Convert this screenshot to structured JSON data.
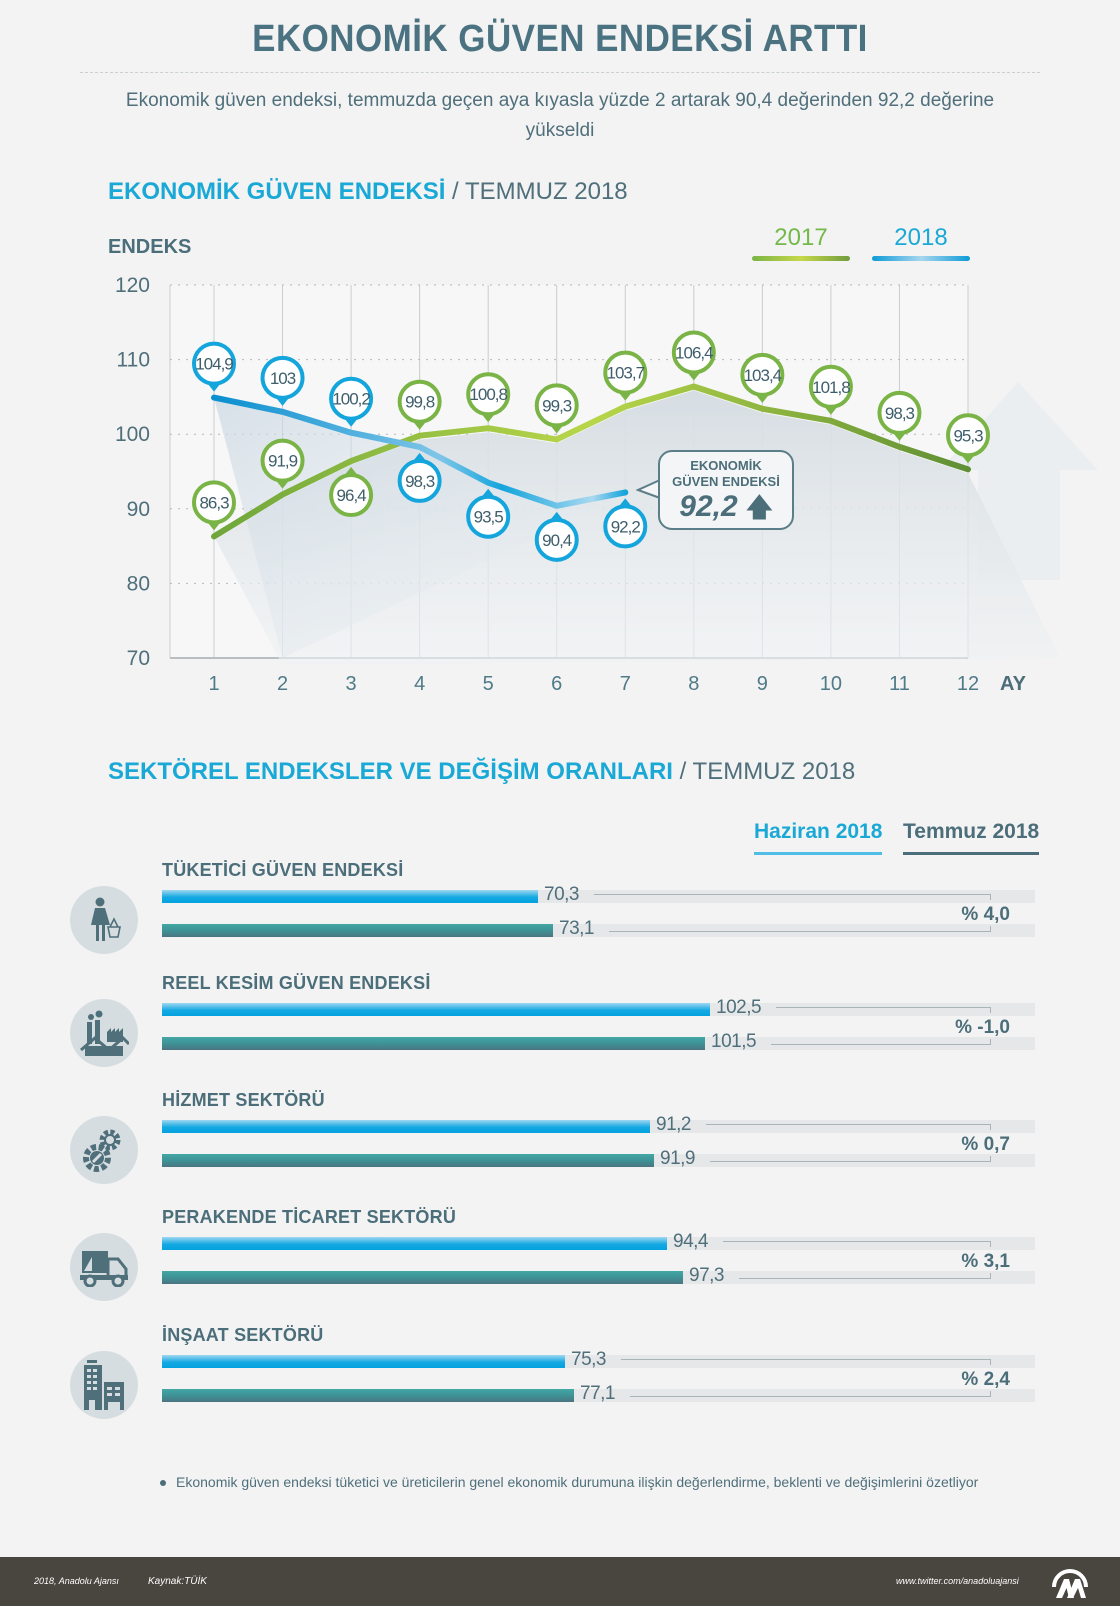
{
  "header": {
    "title": "EKONOMİK GÜVEN ENDEKSİ ARTTI",
    "subtitle": "Ekonomik güven endeksi, temmuzda geçen aya kıyasla yüzde 2 artarak 90,4 değerinden 92,2 değerine yükseldi"
  },
  "section1": {
    "title": "EKONOMİK GÜVEN ENDEKSİ",
    "slash": " / ",
    "subtitle": "TEMMUZ 2018"
  },
  "callout": {
    "line1": "EKONOMİK",
    "line2": "GÜVEN ENDEKSİ",
    "value": "92,2",
    "arrow": "🡅"
  },
  "colors": {
    "green": "#7ab446",
    "blue": "#14a5dc",
    "heading_blue": "#1aa9d6",
    "slate": "#4b6e7a",
    "footer_bg": "#49453f"
  },
  "chart_data": {
    "type": "line",
    "title": "EKONOMİK GÜVEN ENDEKSİ / TEMMUZ 2018",
    "ylabel": "ENDEKS",
    "xlabel": "AY",
    "ylim": [
      70,
      120
    ],
    "yticks": [
      "70",
      "80",
      "90",
      "100",
      "110",
      "120"
    ],
    "x": [
      "1",
      "2",
      "3",
      "4",
      "5",
      "6",
      "7",
      "8",
      "9",
      "10",
      "11",
      "12"
    ],
    "grid": true,
    "legend": "top-right",
    "series": [
      {
        "name": "2017",
        "values": [
          86.3,
          91.9,
          96.4,
          99.8,
          100.8,
          99.3,
          103.7,
          106.4,
          103.4,
          101.8,
          98.3,
          95.3
        ],
        "labels": [
          "86,3",
          "91,9",
          "96,4",
          "99,8",
          "100,8",
          "99,3",
          "103,7",
          "106,4",
          "103,4",
          "101,8",
          "98,3",
          "95,3"
        ]
      },
      {
        "name": "2018",
        "values": [
          104.9,
          103,
          100.2,
          98.3,
          93.5,
          90.4,
          92.2
        ],
        "labels": [
          "104,9",
          "103",
          "100,2",
          "98,3",
          "93,5",
          "90,4",
          "92,2"
        ]
      }
    ]
  },
  "section2": {
    "title": "SEKTÖREL ENDEKSLER VE DEĞİŞİM ORANLARI",
    "slash": " / ",
    "subtitle": "TEMMUZ 2018",
    "legend": {
      "prev": "Haziran 2018",
      "curr": "Temmuz 2018"
    },
    "sectors": [
      {
        "name": "TÜKETİCİ GÜVEN ENDEKSİ",
        "icon": "shopper-icon",
        "prev": 70.3,
        "prev_label": "70,3",
        "curr": 73.1,
        "curr_label": "73,1",
        "change": "% 4,0"
      },
      {
        "name": "REEL KESİM GÜVEN ENDEKSİ",
        "icon": "factory-icon",
        "prev": 102.5,
        "prev_label": "102,5",
        "curr": 101.5,
        "curr_label": "101,5",
        "change": "% -1,0"
      },
      {
        "name": "HİZMET SEKTÖRÜ",
        "icon": "gears-icon",
        "prev": 91.2,
        "prev_label": "91,2",
        "curr": 91.9,
        "curr_label": "91,9",
        "change": "% 0,7"
      },
      {
        "name": "PERAKENDE TİCARET SEKTÖRÜ",
        "icon": "truck-icon",
        "prev": 94.4,
        "prev_label": "94,4",
        "curr": 97.3,
        "curr_label": "97,3",
        "change": "% 3,1"
      },
      {
        "name": "İNŞAAT SEKTÖRÜ",
        "icon": "buildings-icon",
        "prev": 75.3,
        "prev_label": "75,3",
        "curr": 77.1,
        "curr_label": "77,1",
        "change": "% 2,4"
      }
    ]
  },
  "footnote": "Ekonomik güven endeksi tüketici ve üreticilerin genel ekonomik durumuna ilişkin değerlendirme, beklenti ve değişimlerini özetliyor",
  "footer": {
    "copyright": "2018, Anadolu Ajansı",
    "source": "Kaynak:TÜİK",
    "twitter": "www.twitter.com/anadoluajansi",
    "logo": "AA"
  }
}
